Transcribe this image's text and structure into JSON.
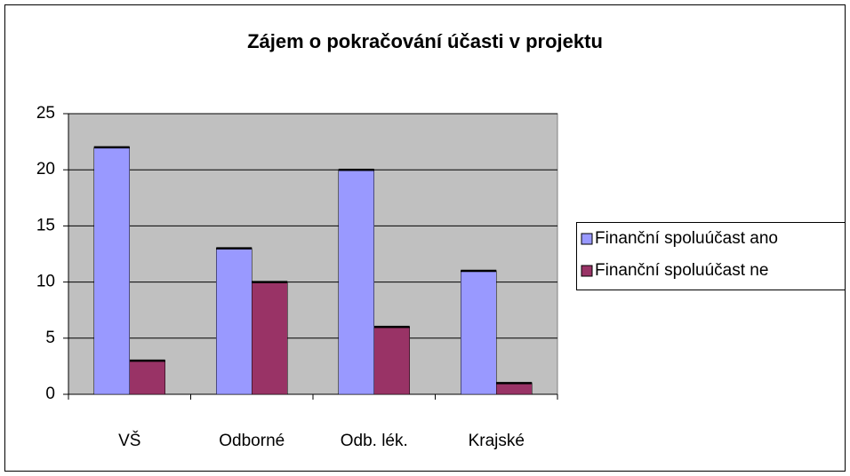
{
  "chart_data": {
    "type": "bar",
    "title": "Zájem o pokračování účasti v projektu",
    "categories": [
      "VŠ",
      "Odborné",
      "Odb. lék.",
      "Krajské"
    ],
    "series": [
      {
        "name": "Finanční spoluúčast ano",
        "color": "#9999ff",
        "values": [
          22,
          13,
          20,
          11
        ]
      },
      {
        "name": "Finanční spoluúčast ne",
        "color": "#993366",
        "values": [
          3,
          10,
          6,
          1
        ]
      }
    ],
    "ylim": [
      0,
      25
    ],
    "yticks": [
      0,
      5,
      10,
      15,
      20,
      25
    ],
    "grid": true,
    "legend": "right"
  }
}
